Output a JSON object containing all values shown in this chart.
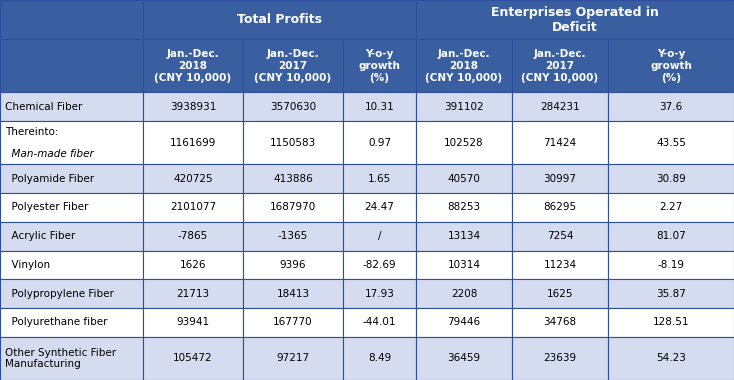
{
  "header_bg": "#3A5FA0",
  "header_text_color": "#FFFFFF",
  "row_bg_light": "#D6DCF0",
  "row_bg_white": "#FFFFFF",
  "border_color": "#2E4FA0",
  "body_text_color": "#000000",
  "col_groups": [
    {
      "label": "Total Profits",
      "span": 3
    },
    {
      "label": "Enterprises Operated in\nDeficit",
      "span": 3
    }
  ],
  "col_headers": [
    "Jan.-Dec.\n2018\n(CNY 10,000)",
    "Jan.-Dec.\n2017\n(CNY 10,000)",
    "Y-o-y\ngrowth\n(%)",
    "Jan.-Dec.\n2018\n(CNY 10,000)",
    "Jan.-Dec.\n2017\n(CNY 10,000)",
    "Y-o-y\ngrowth\n(%)"
  ],
  "row_labels": [
    "Chemical Fiber",
    "Thereinto:\n  Man-made fiber",
    "  Polyamide Fiber",
    "  Polyester Fiber",
    "  Acrylic Fiber",
    "  Vinylon",
    "  Polypropylene Fiber",
    "  Polyurethane fiber",
    "Other Synthetic Fiber\nManufacturing"
  ],
  "row_label_bold": [
    false,
    false,
    false,
    false,
    false,
    false,
    false,
    false,
    false
  ],
  "row_data": [
    [
      "3938931",
      "3570630",
      "10.31",
      "391102",
      "284231",
      "37.6"
    ],
    [
      "1161699",
      "1150583",
      "0.97",
      "102528",
      "71424",
      "43.55"
    ],
    [
      "420725",
      "413886",
      "1.65",
      "40570",
      "30997",
      "30.89"
    ],
    [
      "2101077",
      "1687970",
      "24.47",
      "88253",
      "86295",
      "2.27"
    ],
    [
      "-7865",
      "-1365",
      "/",
      "13134",
      "7254",
      "81.07"
    ],
    [
      "1626",
      "9396",
      "-82.69",
      "10314",
      "11234",
      "-8.19"
    ],
    [
      "21713",
      "18413",
      "17.93",
      "2208",
      "1625",
      "35.87"
    ],
    [
      "93941",
      "167770",
      "-44.01",
      "79446",
      "34768",
      "128.51"
    ],
    [
      "105472",
      "97217",
      "8.49",
      "36459",
      "23639",
      "54.23"
    ]
  ],
  "row_bg": [
    "light",
    "white",
    "light",
    "white",
    "light",
    "white",
    "light",
    "white",
    "light"
  ],
  "fig_w": 7.34,
  "fig_h": 3.8,
  "dpi": 100
}
